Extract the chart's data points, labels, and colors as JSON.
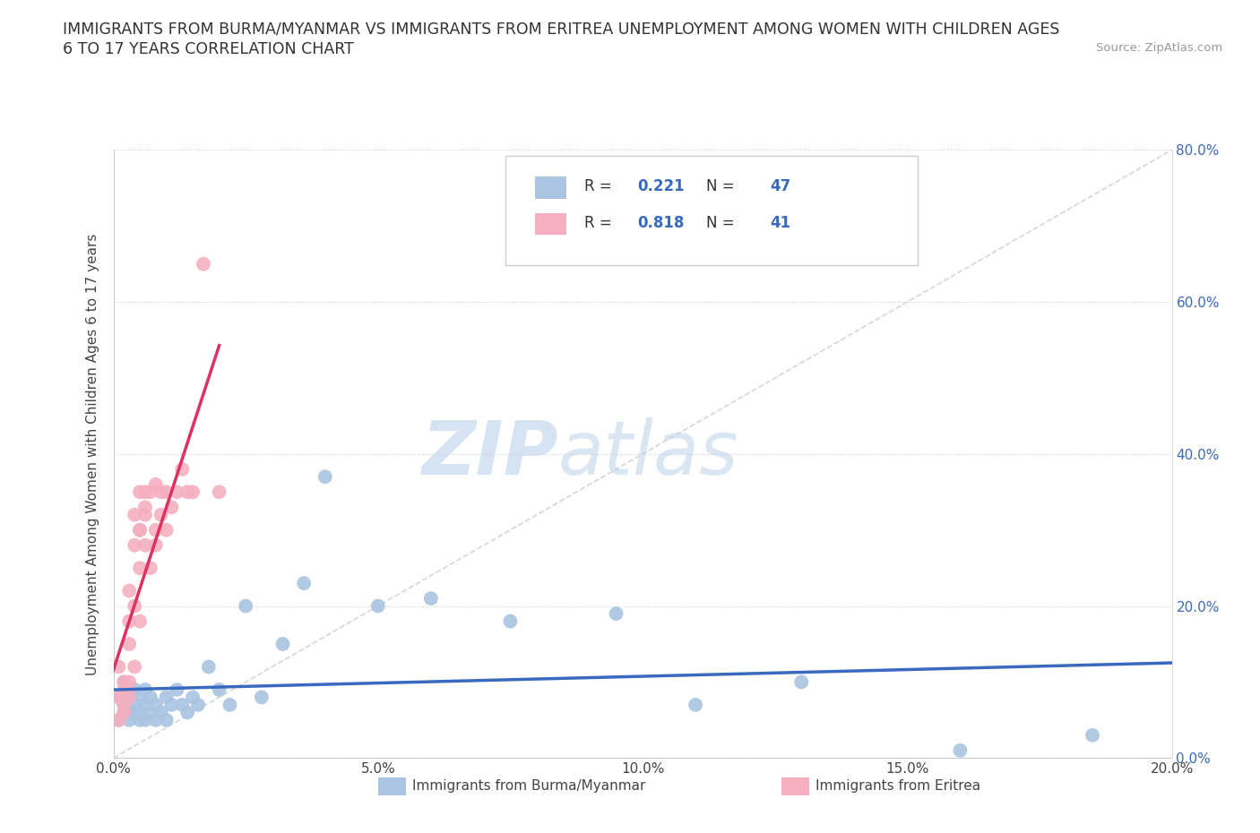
{
  "title_line1": "IMMIGRANTS FROM BURMA/MYANMAR VS IMMIGRANTS FROM ERITREA UNEMPLOYMENT AMONG WOMEN WITH CHILDREN AGES",
  "title_line2": "6 TO 17 YEARS CORRELATION CHART",
  "source": "Source: ZipAtlas.com",
  "ylabel": "Unemployment Among Women with Children Ages 6 to 17 years",
  "xlim": [
    0.0,
    0.2
  ],
  "ylim": [
    0.0,
    0.8
  ],
  "xticks": [
    0.0,
    0.05,
    0.1,
    0.15,
    0.2
  ],
  "yticks": [
    0.0,
    0.2,
    0.4,
    0.6,
    0.8
  ],
  "xtick_labels": [
    "0.0%",
    "5.0%",
    "10.0%",
    "15.0%",
    "20.0%"
  ],
  "ytick_labels_right": [
    "0.0%",
    "20.0%",
    "40.0%",
    "60.0%",
    "80.0%"
  ],
  "burma_R": 0.221,
  "burma_N": 47,
  "eritrea_R": 0.818,
  "eritrea_N": 41,
  "burma_color": "#aac4e2",
  "eritrea_color": "#f5afc0",
  "burma_line_color": "#3a6abf",
  "eritrea_line_color": "#e03060",
  "watermark_zip": "ZIP",
  "watermark_atlas": "atlas",
  "legend_label_burma": "Immigrants from Burma/Myanmar",
  "legend_label_eritrea": "Immigrants from Eritrea",
  "burma_x": [
    0.001,
    0.001,
    0.002,
    0.002,
    0.002,
    0.003,
    0.003,
    0.003,
    0.003,
    0.004,
    0.004,
    0.004,
    0.005,
    0.005,
    0.005,
    0.006,
    0.006,
    0.006,
    0.007,
    0.007,
    0.008,
    0.008,
    0.009,
    0.01,
    0.01,
    0.011,
    0.012,
    0.013,
    0.014,
    0.015,
    0.016,
    0.018,
    0.02,
    0.022,
    0.025,
    0.028,
    0.032,
    0.036,
    0.04,
    0.05,
    0.06,
    0.075,
    0.095,
    0.11,
    0.13,
    0.16,
    0.185
  ],
  "burma_y": [
    0.05,
    0.08,
    0.06,
    0.1,
    0.07,
    0.06,
    0.08,
    0.05,
    0.09,
    0.07,
    0.06,
    0.09,
    0.05,
    0.08,
    0.06,
    0.07,
    0.05,
    0.09,
    0.06,
    0.08,
    0.05,
    0.07,
    0.06,
    0.08,
    0.05,
    0.07,
    0.09,
    0.07,
    0.06,
    0.08,
    0.07,
    0.12,
    0.09,
    0.07,
    0.2,
    0.08,
    0.15,
    0.23,
    0.37,
    0.2,
    0.21,
    0.18,
    0.19,
    0.07,
    0.1,
    0.01,
    0.03
  ],
  "eritrea_x": [
    0.001,
    0.001,
    0.001,
    0.002,
    0.002,
    0.002,
    0.002,
    0.003,
    0.003,
    0.003,
    0.003,
    0.003,
    0.004,
    0.004,
    0.004,
    0.004,
    0.005,
    0.005,
    0.005,
    0.005,
    0.005,
    0.006,
    0.006,
    0.006,
    0.006,
    0.007,
    0.007,
    0.008,
    0.008,
    0.008,
    0.009,
    0.009,
    0.01,
    0.01,
    0.011,
    0.012,
    0.013,
    0.014,
    0.015,
    0.017,
    0.02
  ],
  "eritrea_y": [
    0.05,
    0.08,
    0.12,
    0.06,
    0.1,
    0.07,
    0.09,
    0.1,
    0.15,
    0.08,
    0.18,
    0.22,
    0.12,
    0.2,
    0.28,
    0.32,
    0.3,
    0.35,
    0.25,
    0.18,
    0.3,
    0.32,
    0.35,
    0.28,
    0.33,
    0.35,
    0.25,
    0.36,
    0.3,
    0.28,
    0.32,
    0.35,
    0.3,
    0.35,
    0.33,
    0.35,
    0.38,
    0.35,
    0.35,
    0.65,
    0.35
  ]
}
